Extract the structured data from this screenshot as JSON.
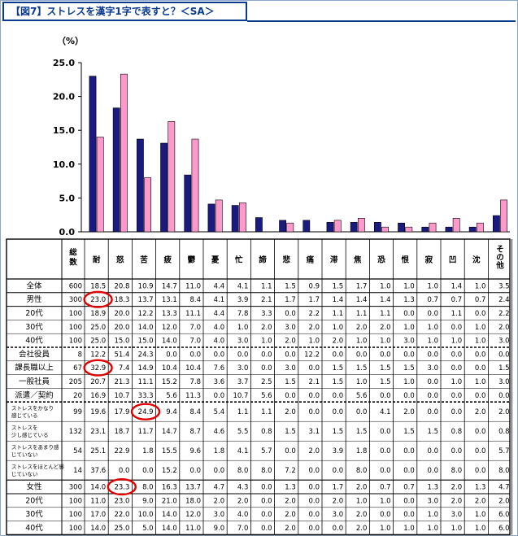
{
  "title": "【図7】ストレスを漢字1字で表すと？＜SA＞",
  "chart_data": {
    "type": "bar",
    "ylabel": "（%）",
    "ylim": [
      0,
      25
    ],
    "yticks": [
      "0.0",
      "5.0",
      "10.0",
      "15.0",
      "20.0",
      "25.0"
    ],
    "categories": [
      "耐",
      "怒",
      "苦",
      "疲",
      "鬱",
      "憂",
      "忙",
      "諦",
      "悲",
      "痛",
      "滞",
      "焦",
      "恐",
      "恨",
      "寂",
      "凹",
      "沈",
      "その他"
    ],
    "series": [
      {
        "values": [
          23.0,
          18.3,
          13.7,
          13.1,
          8.4,
          4.1,
          3.9,
          2.1,
          1.7,
          1.7,
          1.4,
          1.4,
          1.4,
          1.3,
          0.7,
          0.7,
          0.7,
          2.4
        ],
        "color": "#1a1a80"
      },
      {
        "values": [
          14.0,
          23.3,
          8.0,
          16.3,
          13.7,
          4.7,
          4.3,
          0.0,
          1.3,
          0.0,
          1.7,
          2.0,
          0.7,
          0.7,
          1.3,
          2.0,
          1.3,
          4.7
        ],
        "color": "#ff99cc"
      }
    ]
  },
  "table": {
    "header_first": "総数",
    "header_other": "その他",
    "rows": [
      {
        "label": "全体",
        "n": "600",
        "v": [
          "18.5",
          "20.8",
          "10.9",
          "14.7",
          "11.0",
          "4.4",
          "4.1",
          "1.1",
          "1.5",
          "0.9",
          "1.5",
          "1.7",
          "1.0",
          "1.0",
          "1.0",
          "1.4",
          "1.0",
          "3.5"
        ]
      },
      {
        "label": "男性",
        "n": "300",
        "v": [
          "23.0",
          "18.3",
          "13.7",
          "13.1",
          "8.4",
          "4.1",
          "3.9",
          "2.1",
          "1.7",
          "1.7",
          "1.4",
          "1.4",
          "1.4",
          "1.3",
          "0.7",
          "0.7",
          "0.7",
          "2.4"
        ]
      },
      {
        "label": "20代",
        "n": "100",
        "v": [
          "18.9",
          "20.0",
          "12.2",
          "13.3",
          "11.1",
          "4.4",
          "7.8",
          "3.3",
          "0.0",
          "2.2",
          "1.1",
          "1.1",
          "1.1",
          "0.0",
          "0.0",
          "1.1",
          "0.0",
          "2.2"
        ]
      },
      {
        "label": "30代",
        "n": "100",
        "v": [
          "25.0",
          "20.0",
          "14.0",
          "12.0",
          "7.0",
          "4.0",
          "1.0",
          "2.0",
          "3.0",
          "2.0",
          "1.0",
          "2.0",
          "2.0",
          "1.0",
          "1.0",
          "0.0",
          "1.0",
          "2.0"
        ]
      },
      {
        "label": "40代",
        "n": "100",
        "v": [
          "25.0",
          "15.0",
          "15.0",
          "14.0",
          "7.0",
          "4.0",
          "3.0",
          "1.0",
          "2.0",
          "1.0",
          "2.0",
          "1.0",
          "1.0",
          "3.0",
          "1.0",
          "1.0",
          "1.0",
          "3.0"
        ]
      },
      {
        "label": "会社役員",
        "n": "8",
        "v": [
          "12.2",
          "51.4",
          "24.3",
          "0.0",
          "0.0",
          "0.0",
          "0.0",
          "0.0",
          "0.0",
          "12.2",
          "0.0",
          "0.0",
          "0.0",
          "0.0",
          "0.0",
          "0.0",
          "0.0",
          "0.0"
        ]
      },
      {
        "label": "課長職以上",
        "n": "67",
        "v": [
          "32.9",
          "7.4",
          "14.9",
          "10.4",
          "10.4",
          "7.6",
          "3.0",
          "0.0",
          "3.0",
          "0.0",
          "1.5",
          "1.5",
          "1.5",
          "1.5",
          "3.0",
          "0.0",
          "0.0",
          "1.5"
        ]
      },
      {
        "label": "一般社員",
        "n": "205",
        "v": [
          "20.7",
          "21.3",
          "11.1",
          "15.2",
          "7.8",
          "3.6",
          "3.7",
          "2.5",
          "1.5",
          "2.1",
          "1.5",
          "1.0",
          "1.5",
          "1.0",
          "0.0",
          "1.0",
          "1.0",
          "3.0"
        ]
      },
      {
        "label": "派遣／契約",
        "n": "20",
        "v": [
          "16.9",
          "10.7",
          "33.3",
          "5.6",
          "11.3",
          "0.0",
          "10.7",
          "5.6",
          "0.0",
          "0.0",
          "0.0",
          "5.6",
          "0.0",
          "0.0",
          "0.0",
          "0.0",
          "0.0",
          "0.0"
        ]
      },
      {
        "label": "ストレスをかなり感じている",
        "n": "99",
        "v": [
          "19.6",
          "17.9",
          "24.9",
          "9.4",
          "8.4",
          "5.4",
          "1.1",
          "1.1",
          "2.0",
          "0.0",
          "0.0",
          "0.0",
          "4.1",
          "2.0",
          "0.0",
          "0.0",
          "2.0",
          "2.0"
        ]
      },
      {
        "label": "ストレスを少し感じている",
        "n": "132",
        "v": [
          "23.1",
          "18.7",
          "11.7",
          "14.7",
          "8.7",
          "4.6",
          "5.5",
          "0.8",
          "1.5",
          "3.1",
          "1.5",
          "1.5",
          "0.0",
          "1.5",
          "1.5",
          "0.8",
          "0.0",
          "0.8"
        ]
      },
      {
        "label": "ストレスをあまり感じていない",
        "n": "54",
        "v": [
          "25.1",
          "22.9",
          "1.8",
          "15.5",
          "9.6",
          "1.8",
          "4.1",
          "5.7",
          "0.0",
          "2.0",
          "3.9",
          "1.8",
          "0.0",
          "0.0",
          "0.0",
          "0.0",
          "0.0",
          "5.7"
        ]
      },
      {
        "label": "ストレスをほとんど感じていない",
        "n": "14",
        "v": [
          "37.6",
          "0.0",
          "0.0",
          "15.2",
          "0.0",
          "0.0",
          "8.0",
          "8.0",
          "7.2",
          "0.0",
          "0.0",
          "8.0",
          "0.0",
          "0.0",
          "0.0",
          "8.0",
          "0.0",
          "8.0"
        ]
      },
      {
        "label": "女性",
        "n": "300",
        "v": [
          "14.0",
          "23.3",
          "8.0",
          "16.3",
          "13.7",
          "4.7",
          "4.3",
          "0.0",
          "1.3",
          "0.0",
          "1.7",
          "2.0",
          "0.7",
          "0.7",
          "1.3",
          "2.0",
          "1.3",
          "4.7"
        ]
      },
      {
        "label": "20代",
        "n": "100",
        "v": [
          "11.0",
          "23.0",
          "9.0",
          "21.0",
          "18.0",
          "2.0",
          "2.0",
          "0.0",
          "2.0",
          "0.0",
          "2.0",
          "1.0",
          "1.0",
          "0.0",
          "3.0",
          "2.0",
          "2.0",
          "2.0"
        ]
      },
      {
        "label": "30代",
        "n": "100",
        "v": [
          "17.0",
          "22.0",
          "10.0",
          "14.0",
          "12.0",
          "3.0",
          "4.0",
          "0.0",
          "2.0",
          "0.0",
          "3.0",
          "2.0",
          "0.0",
          "0.0",
          "1.0",
          "3.0",
          "1.0",
          "6.0"
        ]
      },
      {
        "label": "40代",
        "n": "100",
        "v": [
          "14.0",
          "25.0",
          "5.0",
          "14.0",
          "11.0",
          "9.0",
          "7.0",
          "0.0",
          "2.0",
          "0.0",
          "0.0",
          "2.0",
          "1.0",
          "1.0",
          "1.0",
          "1.0",
          "1.0",
          "6.0"
        ]
      }
    ],
    "circled": [
      [
        1,
        0
      ],
      [
        6,
        0
      ],
      [
        9,
        2
      ],
      [
        13,
        1
      ]
    ]
  }
}
